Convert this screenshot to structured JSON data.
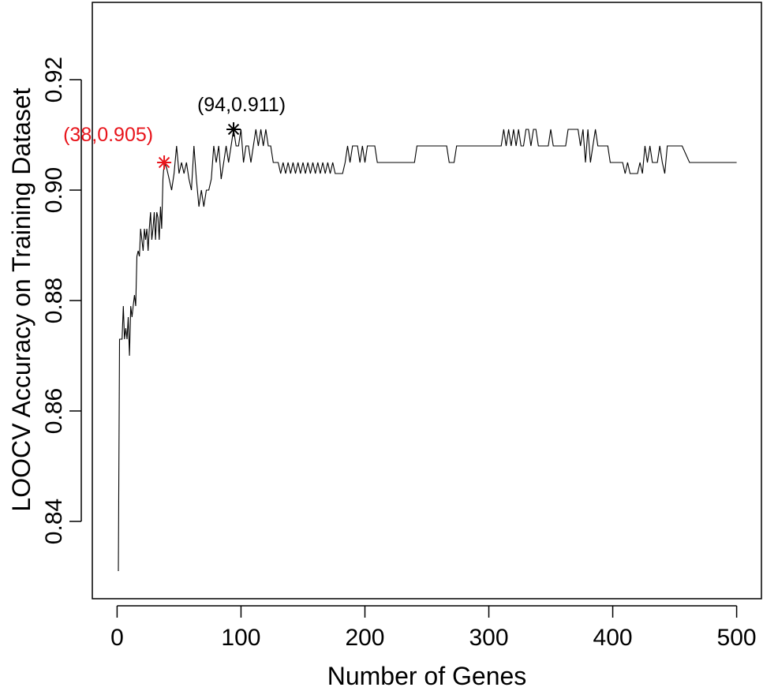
{
  "chart_data": {
    "type": "line",
    "title": "",
    "xlabel": "Number of Genes",
    "ylabel": "LOOCV Accuracy on Training Dataset",
    "xlim": [
      -20,
      520
    ],
    "ylim": [
      0.826,
      0.934
    ],
    "x_ticks": [
      0,
      100,
      200,
      300,
      400,
      500
    ],
    "x_tick_labels": [
      "0",
      "100",
      "200",
      "300",
      "400",
      "500"
    ],
    "y_ticks": [
      0.84,
      0.86,
      0.88,
      0.9,
      0.92
    ],
    "y_tick_labels": [
      "0.84",
      "0.86",
      "0.88",
      "0.90",
      "0.92"
    ],
    "grid": false,
    "legend": "none",
    "series": [
      {
        "color": "#000000",
        "points": [
          [
            1,
            0.831
          ],
          [
            2,
            0.873
          ],
          [
            3,
            0.873
          ],
          [
            4,
            0.873
          ],
          [
            5,
            0.879
          ],
          [
            6,
            0.873
          ],
          [
            7,
            0.875
          ],
          [
            8,
            0.873
          ],
          [
            9,
            0.877
          ],
          [
            10,
            0.87
          ],
          [
            11,
            0.879
          ],
          [
            12,
            0.877
          ],
          [
            13,
            0.879
          ],
          [
            14,
            0.881
          ],
          [
            15,
            0.879
          ],
          [
            16,
            0.888
          ],
          [
            17,
            0.889
          ],
          [
            18,
            0.888
          ],
          [
            19,
            0.893
          ],
          [
            20,
            0.891
          ],
          [
            21,
            0.889
          ],
          [
            22,
            0.893
          ],
          [
            23,
            0.891
          ],
          [
            24,
            0.893
          ],
          [
            25,
            0.889
          ],
          [
            26,
            0.893
          ],
          [
            27,
            0.896
          ],
          [
            28,
            0.891
          ],
          [
            29,
            0.893
          ],
          [
            30,
            0.896
          ],
          [
            31,
            0.891
          ],
          [
            32,
            0.896
          ],
          [
            33,
            0.895
          ],
          [
            34,
            0.891
          ],
          [
            35,
            0.897
          ],
          [
            36,
            0.893
          ],
          [
            37,
            0.902
          ],
          [
            38,
            0.905
          ],
          [
            40,
            0.904
          ],
          [
            42,
            0.902
          ],
          [
            44,
            0.9
          ],
          [
            46,
            0.903
          ],
          [
            48,
            0.908
          ],
          [
            50,
            0.903
          ],
          [
            52,
            0.905
          ],
          [
            54,
            0.903
          ],
          [
            56,
            0.905
          ],
          [
            58,
            0.902
          ],
          [
            60,
            0.9
          ],
          [
            62,
            0.908
          ],
          [
            64,
            0.902
          ],
          [
            66,
            0.897
          ],
          [
            68,
            0.9
          ],
          [
            70,
            0.897
          ],
          [
            72,
            0.9
          ],
          [
            74,
            0.9
          ],
          [
            76,
            0.902
          ],
          [
            78,
            0.908
          ],
          [
            80,
            0.905
          ],
          [
            82,
            0.908
          ],
          [
            84,
            0.902
          ],
          [
            86,
            0.905
          ],
          [
            88,
            0.908
          ],
          [
            90,
            0.905
          ],
          [
            92,
            0.908
          ],
          [
            94,
            0.911
          ],
          [
            96,
            0.908
          ],
          [
            98,
            0.908
          ],
          [
            100,
            0.911
          ],
          [
            102,
            0.905
          ],
          [
            104,
            0.908
          ],
          [
            106,
            0.908
          ],
          [
            108,
            0.905
          ],
          [
            110,
            0.908
          ],
          [
            112,
            0.911
          ],
          [
            114,
            0.908
          ],
          [
            116,
            0.911
          ],
          [
            118,
            0.908
          ],
          [
            120,
            0.911
          ],
          [
            122,
            0.908
          ],
          [
            124,
            0.908
          ],
          [
            126,
            0.905
          ],
          [
            128,
            0.905
          ],
          [
            130,
            0.905
          ],
          [
            132,
            0.903
          ],
          [
            134,
            0.905
          ],
          [
            136,
            0.903
          ],
          [
            138,
            0.905
          ],
          [
            140,
            0.903
          ],
          [
            142,
            0.905
          ],
          [
            144,
            0.903
          ],
          [
            146,
            0.905
          ],
          [
            148,
            0.903
          ],
          [
            150,
            0.905
          ],
          [
            152,
            0.903
          ],
          [
            154,
            0.905
          ],
          [
            156,
            0.903
          ],
          [
            158,
            0.905
          ],
          [
            160,
            0.903
          ],
          [
            162,
            0.905
          ],
          [
            164,
            0.903
          ],
          [
            166,
            0.905
          ],
          [
            168,
            0.903
          ],
          [
            170,
            0.905
          ],
          [
            172,
            0.903
          ],
          [
            174,
            0.905
          ],
          [
            176,
            0.903
          ],
          [
            178,
            0.903
          ],
          [
            180,
            0.903
          ],
          [
            182,
            0.903
          ],
          [
            184,
            0.905
          ],
          [
            186,
            0.908
          ],
          [
            188,
            0.905
          ],
          [
            190,
            0.908
          ],
          [
            192,
            0.908
          ],
          [
            194,
            0.908
          ],
          [
            196,
            0.905
          ],
          [
            198,
            0.908
          ],
          [
            200,
            0.905
          ],
          [
            202,
            0.908
          ],
          [
            204,
            0.908
          ],
          [
            206,
            0.908
          ],
          [
            208,
            0.908
          ],
          [
            210,
            0.905
          ],
          [
            212,
            0.905
          ],
          [
            220,
            0.905
          ],
          [
            228,
            0.905
          ],
          [
            236,
            0.905
          ],
          [
            240,
            0.905
          ],
          [
            242,
            0.908
          ],
          [
            250,
            0.908
          ],
          [
            258,
            0.908
          ],
          [
            266,
            0.908
          ],
          [
            268,
            0.905
          ],
          [
            272,
            0.905
          ],
          [
            274,
            0.908
          ],
          [
            282,
            0.908
          ],
          [
            290,
            0.908
          ],
          [
            298,
            0.908
          ],
          [
            306,
            0.908
          ],
          [
            310,
            0.908
          ],
          [
            312,
            0.911
          ],
          [
            314,
            0.908
          ],
          [
            316,
            0.911
          ],
          [
            318,
            0.908
          ],
          [
            320,
            0.911
          ],
          [
            322,
            0.908
          ],
          [
            324,
            0.911
          ],
          [
            326,
            0.908
          ],
          [
            328,
            0.908
          ],
          [
            330,
            0.911
          ],
          [
            332,
            0.911
          ],
          [
            334,
            0.908
          ],
          [
            336,
            0.911
          ],
          [
            338,
            0.911
          ],
          [
            340,
            0.908
          ],
          [
            344,
            0.908
          ],
          [
            346,
            0.908
          ],
          [
            348,
            0.908
          ],
          [
            350,
            0.911
          ],
          [
            352,
            0.908
          ],
          [
            356,
            0.908
          ],
          [
            362,
            0.908
          ],
          [
            364,
            0.911
          ],
          [
            372,
            0.911
          ],
          [
            374,
            0.908
          ],
          [
            376,
            0.911
          ],
          [
            378,
            0.905
          ],
          [
            380,
            0.911
          ],
          [
            382,
            0.905
          ],
          [
            384,
            0.908
          ],
          [
            386,
            0.911
          ],
          [
            388,
            0.908
          ],
          [
            392,
            0.908
          ],
          [
            396,
            0.908
          ],
          [
            398,
            0.905
          ],
          [
            402,
            0.905
          ],
          [
            406,
            0.905
          ],
          [
            408,
            0.905
          ],
          [
            410,
            0.903
          ],
          [
            412,
            0.905
          ],
          [
            414,
            0.903
          ],
          [
            416,
            0.903
          ],
          [
            418,
            0.903
          ],
          [
            420,
            0.903
          ],
          [
            422,
            0.905
          ],
          [
            424,
            0.903
          ],
          [
            426,
            0.908
          ],
          [
            428,
            0.905
          ],
          [
            430,
            0.908
          ],
          [
            432,
            0.905
          ],
          [
            434,
            0.905
          ],
          [
            436,
            0.905
          ],
          [
            438,
            0.908
          ],
          [
            440,
            0.905
          ],
          [
            442,
            0.903
          ],
          [
            444,
            0.908
          ],
          [
            446,
            0.908
          ],
          [
            450,
            0.908
          ],
          [
            456,
            0.908
          ],
          [
            462,
            0.905
          ],
          [
            470,
            0.905
          ],
          [
            480,
            0.905
          ],
          [
            490,
            0.905
          ],
          [
            500,
            0.905
          ]
        ]
      }
    ],
    "annotations": [
      {
        "x": 38,
        "y": 0.905,
        "label": "(38,0.905)",
        "color": "#e8141b",
        "marker": "asterisk",
        "label_anchor": "left"
      },
      {
        "x": 94,
        "y": 0.911,
        "label": "(94,0.911)",
        "color": "#000000",
        "marker": "asterisk",
        "label_anchor": "above"
      }
    ]
  }
}
